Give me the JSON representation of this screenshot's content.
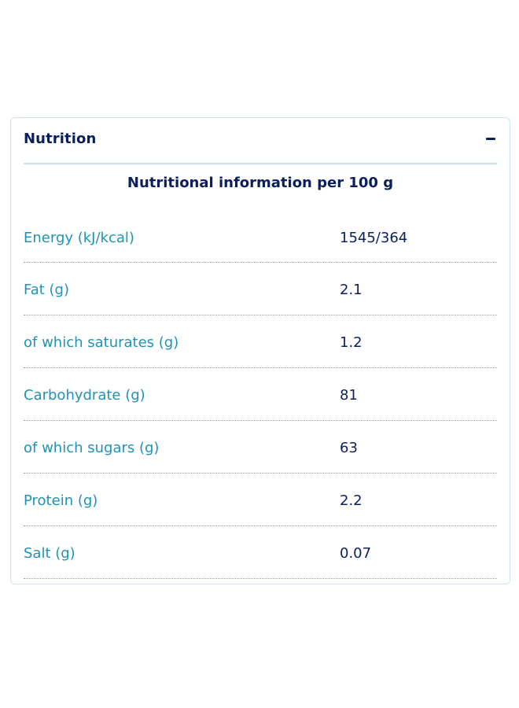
{
  "panel": {
    "title": "Nutrition",
    "collapse_icon": "minus-icon"
  },
  "table": {
    "caption": "Nutritional information per 100 g",
    "rows": [
      {
        "label": "Energy (kJ/kcal)",
        "value": "1545/364"
      },
      {
        "label": "Fat (g)",
        "value": "2.1"
      },
      {
        "label": "of which saturates (g)",
        "value": "1.2"
      },
      {
        "label": "Carbohydrate (g)",
        "value": "81"
      },
      {
        "label": "of which sugars (g)",
        "value": "63"
      },
      {
        "label": "Protein (g)",
        "value": "2.2"
      },
      {
        "label": "Salt (g)",
        "value": "0.07"
      }
    ]
  },
  "colors": {
    "title": "#0b1f5c",
    "label": "#1f93b5",
    "border": "#c9e6f2"
  }
}
